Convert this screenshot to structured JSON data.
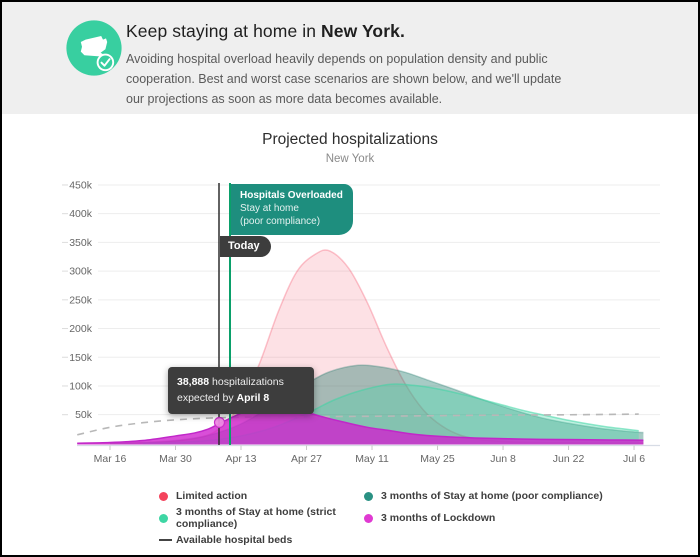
{
  "header": {
    "title_prefix": "Keep staying at home in ",
    "title_strong": "New York.",
    "subtitle": "Avoiding hospital overload heavily depends on population density and public cooperation. Best and worst case scenarios are shown below, and we'll update our projections as soon as more data becomes available.",
    "icon_name": "new-york-state-check-icon",
    "accent_color": "#38cfa0"
  },
  "chart": {
    "title": "Projected hospitalizations",
    "subtitle": "New York",
    "annotations": {
      "overload_badge": {
        "title": "Hospitals Overloaded",
        "line1": "Stay at home",
        "line2": "(poor compliance)",
        "color": "#1e8e7e"
      },
      "today_badge": {
        "label": "Today"
      },
      "tooltip": {
        "value": "38,888",
        "after_value": " hospitalizations",
        "line2_prefix": "expected by ",
        "date": "April 8"
      }
    }
  },
  "chart_data": {
    "type": "area",
    "title": "Projected hospitalizations",
    "subtitle": "New York",
    "x_axis": {
      "unit": "date",
      "tick_labels": [
        "Mar 16",
        "Mar 30",
        "Apr 13",
        "Apr 27",
        "May 11",
        "May 25",
        "Jun 8",
        "Jun 22",
        "Jul 6"
      ],
      "days_between_ticks": 14
    },
    "y_axis": {
      "unit": "hospitalizations",
      "tick_labels": [
        "50k",
        "100k",
        "150k",
        "200k",
        "250k",
        "300k",
        "350k",
        "400k",
        "450k"
      ],
      "range_k": [
        0,
        450
      ],
      "grid": true
    },
    "point_units": "[days since Mar 16, thousands of hospitalizations]",
    "series": [
      {
        "name": "Limited action",
        "kind": "area",
        "color": "#f4435c",
        "fill": "rgba(244,67,92,0.16)",
        "stroke": "rgba(244,67,92,0.30)",
        "points": [
          [
            -7,
            0.3
          ],
          [
            0,
            0.8
          ],
          [
            7,
            1.5
          ],
          [
            14,
            4
          ],
          [
            20,
            12
          ],
          [
            24,
            30
          ],
          [
            28,
            70
          ],
          [
            32,
            140
          ],
          [
            36,
            230
          ],
          [
            40,
            300
          ],
          [
            44,
            330
          ],
          [
            47,
            335
          ],
          [
            51,
            305
          ],
          [
            55,
            245
          ],
          [
            59,
            170
          ],
          [
            63,
            105
          ],
          [
            67,
            58
          ],
          [
            71,
            30
          ],
          [
            75,
            14
          ],
          [
            80,
            6
          ],
          [
            88,
            2
          ],
          [
            100,
            1
          ],
          [
            114,
            0.6
          ]
        ]
      },
      {
        "name": "3 months of Stay at home (poor compliance)",
        "kind": "area",
        "color": "#2a9183",
        "fill": "rgba(36,124,110,0.40)",
        "stroke": "rgba(36,124,110,0.30)",
        "points": [
          [
            0,
            0.5
          ],
          [
            7,
            1.5
          ],
          [
            14,
            5
          ],
          [
            21,
            14
          ],
          [
            28,
            34
          ],
          [
            35,
            68
          ],
          [
            42,
            104
          ],
          [
            47,
            125
          ],
          [
            53,
            136
          ],
          [
            58,
            133
          ],
          [
            63,
            124
          ],
          [
            68,
            110
          ],
          [
            74,
            93
          ],
          [
            80,
            75
          ],
          [
            86,
            59
          ],
          [
            92,
            45
          ],
          [
            98,
            35
          ],
          [
            105,
            26
          ],
          [
            112,
            20
          ],
          [
            114,
            19
          ]
        ]
      },
      {
        "name": "3 months of Stay at home (strict compliance)",
        "kind": "area",
        "color": "#3ed6a4",
        "fill": "rgba(62,214,164,0.32)",
        "stroke": "rgba(62,214,164,0.55)",
        "points": [
          [
            7,
            0.3
          ],
          [
            14,
            1.5
          ],
          [
            21,
            5
          ],
          [
            28,
            13
          ],
          [
            35,
            28
          ],
          [
            42,
            52
          ],
          [
            48,
            76
          ],
          [
            54,
            93
          ],
          [
            60,
            103
          ],
          [
            65,
            101
          ],
          [
            70,
            95
          ],
          [
            76,
            84
          ],
          [
            82,
            71
          ],
          [
            88,
            58
          ],
          [
            94,
            47
          ],
          [
            100,
            37
          ],
          [
            106,
            29
          ],
          [
            110,
            25
          ],
          [
            113,
            22
          ]
        ]
      },
      {
        "name": "Available hospital beds",
        "kind": "dashed-line",
        "color": "#b8b8b8",
        "points": [
          [
            -7,
            15
          ],
          [
            0,
            28
          ],
          [
            7,
            36
          ],
          [
            14,
            41
          ],
          [
            21,
            44
          ],
          [
            28,
            45.5
          ],
          [
            42,
            46.5
          ],
          [
            60,
            47.5
          ],
          [
            80,
            49
          ],
          [
            100,
            50
          ],
          [
            113,
            51
          ]
        ]
      },
      {
        "name": "3 months of Lockdown",
        "kind": "area",
        "color": "#e03ad2",
        "fill": "rgba(208,35,206,0.80)",
        "stroke": "#c127c9",
        "points": [
          [
            -7,
            0.3
          ],
          [
            0,
            1.5
          ],
          [
            7,
            5
          ],
          [
            14,
            13
          ],
          [
            18,
            18
          ],
          [
            21,
            25
          ],
          [
            23,
            33
          ],
          [
            26,
            45
          ],
          [
            29,
            56
          ],
          [
            32,
            64
          ],
          [
            35,
            65
          ],
          [
            38,
            61
          ],
          [
            42,
            54
          ],
          [
            46,
            45
          ],
          [
            50,
            37
          ],
          [
            55,
            28
          ],
          [
            60,
            22
          ],
          [
            65,
            16
          ],
          [
            71,
            12
          ],
          [
            78,
            9.5
          ],
          [
            85,
            8
          ],
          [
            92,
            7
          ],
          [
            100,
            6.5
          ],
          [
            107,
            6
          ],
          [
            114,
            5.5
          ]
        ]
      }
    ],
    "markers": {
      "today_line_date": "April 8",
      "overload_line_color": "#0aa06a",
      "today_line_color": "#2f2f2f",
      "highlight_point": {
        "label": "38,888 hospitalizations expected by April 8",
        "value_k": 38.9
      }
    },
    "legend": [
      {
        "label": "Limited action",
        "color": "#f4435c",
        "swatch": "dot"
      },
      {
        "label": "3 months of Stay at home (poor compliance)",
        "color": "#2a9183",
        "swatch": "dot"
      },
      {
        "label": "3 months of Stay at home (strict compliance)",
        "color": "#3ed6a4",
        "swatch": "dot"
      },
      {
        "label": "3 months of Lockdown",
        "color": "#e03ad2",
        "swatch": "dot"
      },
      {
        "label": "Available hospital beds",
        "color": "#444444",
        "swatch": "dash"
      }
    ],
    "legend_position": "bottom-left"
  }
}
